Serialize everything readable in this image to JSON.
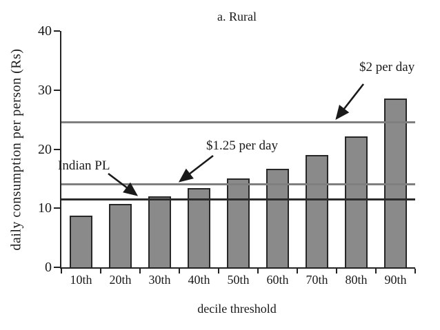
{
  "figure": {
    "title": "a. Rural"
  },
  "chart_data": {
    "type": "bar",
    "title": "a. Rural",
    "xlabel": "decile threshold",
    "ylabel": "daily consumption per person (Rs)",
    "categories": [
      "10th",
      "20th",
      "30th",
      "40th",
      "50th",
      "60th",
      "70th",
      "80th",
      "90th"
    ],
    "values": [
      8.8,
      10.7,
      12.0,
      13.4,
      15.0,
      16.7,
      19.0,
      22.2,
      28.6
    ],
    "ylim": [
      0,
      40
    ],
    "yticks": [
      0,
      10,
      20,
      30,
      40
    ],
    "grid": false,
    "legend": "none",
    "bar_color": "#8a8a8a",
    "bar_border_color": "#262626",
    "axis_color": "#222222",
    "ref_lines": [
      {
        "id": "indian-pl",
        "label": "Indian PL",
        "value": 11.5,
        "color": "#2b2b2b"
      },
      {
        "id": "dollar-125",
        "label": "$1.25 per day",
        "value": 14.1,
        "color": "#7f7f7f"
      },
      {
        "id": "dollar-2",
        "label": "$2 per day",
        "value": 24.5,
        "color": "#7f7f7f"
      }
    ]
  },
  "annotations": {
    "dollar2_label": "$2 per day",
    "dollar125_label": "$1.25 per day",
    "indian_pl_label": "Indian PL"
  }
}
